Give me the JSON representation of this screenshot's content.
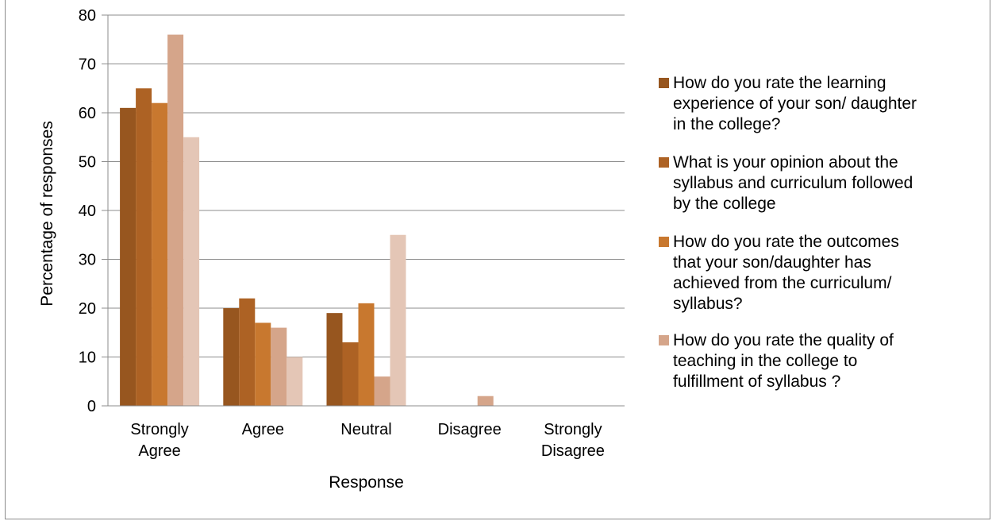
{
  "chart_data": {
    "type": "bar",
    "title": "",
    "xlabel": "Response",
    "ylabel": "Percentage of responses",
    "ylim": [
      0,
      80
    ],
    "yticks": [
      0,
      10,
      20,
      30,
      40,
      50,
      60,
      70,
      80
    ],
    "grid": true,
    "legend_position": "right",
    "categories": [
      [
        "Strongly",
        "Agree"
      ],
      [
        "Agree"
      ],
      [
        "Neutral"
      ],
      [
        "Disagree"
      ],
      [
        "Strongly",
        "Disagree"
      ]
    ],
    "series": [
      {
        "name": "How do you rate the learning experience of your son/ daughter in the college?",
        "color": "#97561f",
        "values": [
          61,
          20,
          19,
          0,
          0
        ]
      },
      {
        "name": "What is your opinion about the syllabus and curriculum followed by the college",
        "color": "#ad6224",
        "values": [
          65,
          22,
          13,
          0,
          0
        ]
      },
      {
        "name": "How do you rate the outcomes that your son/daughter has achieved from the curriculum/ syllabus?",
        "color": "#c8782f",
        "values": [
          62,
          17,
          21,
          0,
          0
        ]
      },
      {
        "name": "How do you rate the quality of teaching in the college to fulfillment of syllabus ?",
        "color": "#d5a58a",
        "values": [
          76,
          16,
          6,
          2,
          0
        ]
      },
      {
        "name": "",
        "color": "#e4c6b6",
        "values": [
          55,
          10,
          35,
          0,
          0
        ]
      }
    ]
  },
  "legend": {
    "items": [
      {
        "lines": [
          "How do you rate the learning",
          "experience of your son/ daughter",
          "in the college?"
        ],
        "color": "#97561f"
      },
      {
        "lines": [
          "What is your opinion about the",
          "syllabus and curriculum followed",
          "by the college"
        ],
        "color": "#ad6224"
      },
      {
        "lines": [
          "How do you rate the outcomes",
          "that your son/daughter has",
          "achieved from the curriculum/",
          "syllabus?"
        ],
        "color": "#c8782f"
      },
      {
        "lines": [
          "How do you rate the quality of",
          "teaching in the college to",
          "fulfillment of syllabus ?"
        ],
        "color": "#d5a58a"
      }
    ]
  }
}
